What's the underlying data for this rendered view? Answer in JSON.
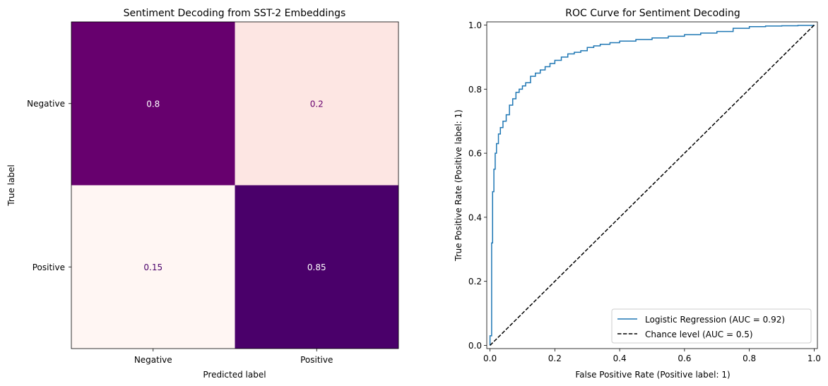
{
  "chart_data": [
    {
      "type": "heatmap",
      "title": "Sentiment Decoding from SST-2 Embeddings",
      "xlabel": "Predicted label",
      "ylabel": "True label",
      "x_categories": [
        "Negative",
        "Positive"
      ],
      "y_categories": [
        "Negative",
        "Positive"
      ],
      "values": [
        [
          0.8,
          0.2
        ],
        [
          0.15,
          0.85
        ]
      ],
      "cell_labels": [
        [
          "0.8",
          "0.2"
        ],
        [
          "0.15",
          "0.85"
        ]
      ],
      "colormap": "RdPu",
      "cell_colors": [
        [
          "#67006e",
          "#fde6e3"
        ],
        [
          "#fff6f3",
          "#4a006a"
        ]
      ],
      "label_colors": [
        [
          "#ffffff",
          "#67006e"
        ],
        [
          "#49006a",
          "#ffffff"
        ]
      ]
    },
    {
      "type": "line",
      "title": "ROC Curve for Sentiment Decoding",
      "xlabel": "False Positive Rate (Positive label: 1)",
      "ylabel": "True Positive Rate (Positive label: 1)",
      "xlim": [
        -0.01,
        1.01
      ],
      "ylim": [
        -0.01,
        1.01
      ],
      "xticks": [
        "0.0",
        "0.2",
        "0.4",
        "0.6",
        "0.8",
        "1.0"
      ],
      "yticks": [
        "0.0",
        "0.2",
        "0.4",
        "0.6",
        "0.8",
        "1.0"
      ],
      "legend_position": "bottom-right",
      "series": [
        {
          "name": "Logistic Regression (AUC = 0.92)",
          "color": "#1f77b4",
          "style": "step",
          "x": [
            0.0,
            0.0,
            0.005,
            0.005,
            0.008,
            0.008,
            0.012,
            0.012,
            0.016,
            0.016,
            0.02,
            0.02,
            0.026,
            0.026,
            0.032,
            0.032,
            0.04,
            0.04,
            0.05,
            0.05,
            0.06,
            0.06,
            0.07,
            0.07,
            0.08,
            0.08,
            0.09,
            0.09,
            0.1,
            0.1,
            0.11,
            0.11,
            0.125,
            0.125,
            0.14,
            0.14,
            0.155,
            0.155,
            0.17,
            0.17,
            0.185,
            0.185,
            0.2,
            0.2,
            0.22,
            0.22,
            0.24,
            0.24,
            0.26,
            0.26,
            0.28,
            0.28,
            0.3,
            0.3,
            0.32,
            0.32,
            0.34,
            0.34,
            0.37,
            0.37,
            0.4,
            0.4,
            0.45,
            0.45,
            0.5,
            0.5,
            0.55,
            0.55,
            0.6,
            0.6,
            0.65,
            0.65,
            0.7,
            0.7,
            0.75,
            0.75,
            0.8,
            0.8,
            0.85,
            0.85,
            0.9,
            0.9,
            0.95,
            0.95,
            1.0,
            1.0
          ],
          "y": [
            0.0,
            0.03,
            0.03,
            0.32,
            0.32,
            0.48,
            0.48,
            0.55,
            0.55,
            0.6,
            0.6,
            0.63,
            0.63,
            0.66,
            0.66,
            0.68,
            0.68,
            0.7,
            0.7,
            0.72,
            0.72,
            0.75,
            0.75,
            0.77,
            0.77,
            0.79,
            0.79,
            0.8,
            0.8,
            0.81,
            0.81,
            0.82,
            0.82,
            0.84,
            0.84,
            0.85,
            0.85,
            0.86,
            0.86,
            0.87,
            0.87,
            0.88,
            0.88,
            0.89,
            0.89,
            0.9,
            0.9,
            0.91,
            0.91,
            0.915,
            0.915,
            0.92,
            0.92,
            0.93,
            0.93,
            0.935,
            0.935,
            0.94,
            0.94,
            0.945,
            0.945,
            0.95,
            0.95,
            0.955,
            0.955,
            0.96,
            0.96,
            0.965,
            0.965,
            0.97,
            0.97,
            0.975,
            0.975,
            0.98,
            0.98,
            0.99,
            0.99,
            0.995,
            0.995,
            0.997,
            0.997,
            0.998,
            0.998,
            0.999,
            0.999,
            1.0
          ]
        },
        {
          "name": "Chance level (AUC = 0.5)",
          "color": "#000000",
          "style": "dashed",
          "x": [
            0.0,
            1.0
          ],
          "y": [
            0.0,
            1.0
          ]
        }
      ]
    }
  ]
}
